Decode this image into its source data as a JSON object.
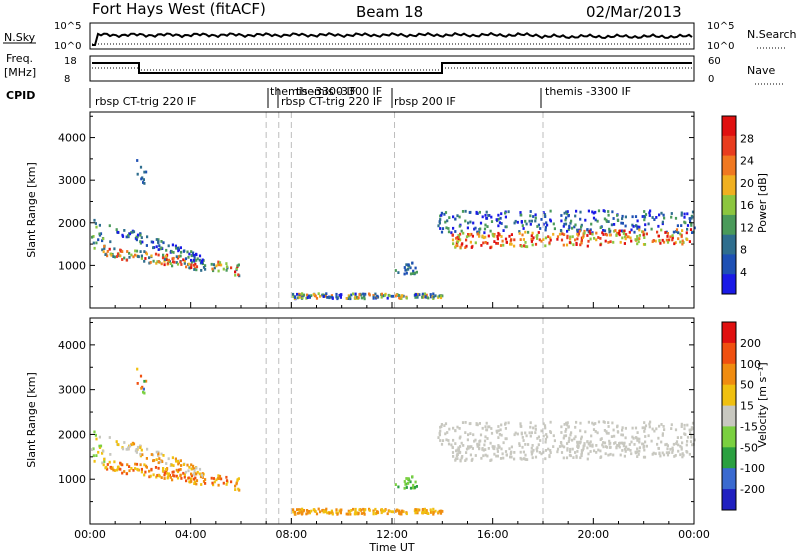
{
  "header": {
    "station": "Fort Hays West (fitACF)",
    "beam": "Beam 18",
    "date": "02/Mar/2013"
  },
  "colors": {
    "power": [
      "#1a1ae6",
      "#1e50b4",
      "#2f6e8e",
      "#4a9a5a",
      "#8cc63f",
      "#f0b020",
      "#f07820",
      "#e83c1e",
      "#e01010"
    ],
    "velocity": [
      "#2020c0",
      "#3a6ad0",
      "#2aa040",
      "#7ad040",
      "#c8c8c0",
      "#f0c010",
      "#f08c10",
      "#f05010",
      "#e01010"
    ],
    "guide": "#bdbdbd"
  },
  "top_panels": {
    "nsky": {
      "left_label": "N.Sky",
      "left_ticks": [
        "10^5",
        "10^0"
      ],
      "right_label": "N.Search",
      "right_ticks": [
        "10^5",
        "10^0"
      ]
    },
    "freq": {
      "left_label_1": "Freq.",
      "left_label_2": "[MHz]",
      "left_ticks": [
        "18",
        "8"
      ],
      "right_label": "Nave",
      "right_ticks": [
        "60",
        "0"
      ]
    },
    "cpid": {
      "label": "CPID",
      "segments": [
        "rbsp CT-trig 220 IF",
        "themis -3300 IF",
        "rbsp CT-trig 220 IF",
        "themis -3300 IF",
        "rbsp 200 IF",
        "themis -3300 IF"
      ]
    }
  },
  "chart_data": [
    {
      "type": "heatmap",
      "ylabel": "Slant Range [km]",
      "yticks": [
        1000,
        2000,
        3000,
        4000
      ],
      "colorbar": {
        "label": "Power [dB]",
        "ticks": [
          "28",
          "24",
          "20",
          "16",
          "12",
          "8",
          "4"
        ]
      }
    },
    {
      "type": "heatmap",
      "ylabel": "Slant Range [km]",
      "yticks": [
        1000,
        2000,
        3000,
        4000
      ],
      "colorbar": {
        "label": "Velocity [m s⁻¹]",
        "ticks": [
          "200",
          "100",
          "50",
          "15",
          "-15",
          "-50",
          "-100",
          "-200"
        ]
      }
    }
  ],
  "time_axis": {
    "ticks": [
      "00:00",
      "04:00",
      "08:00",
      "12:00",
      "16:00",
      "20:00",
      "00:00"
    ],
    "label": "Time UT"
  }
}
